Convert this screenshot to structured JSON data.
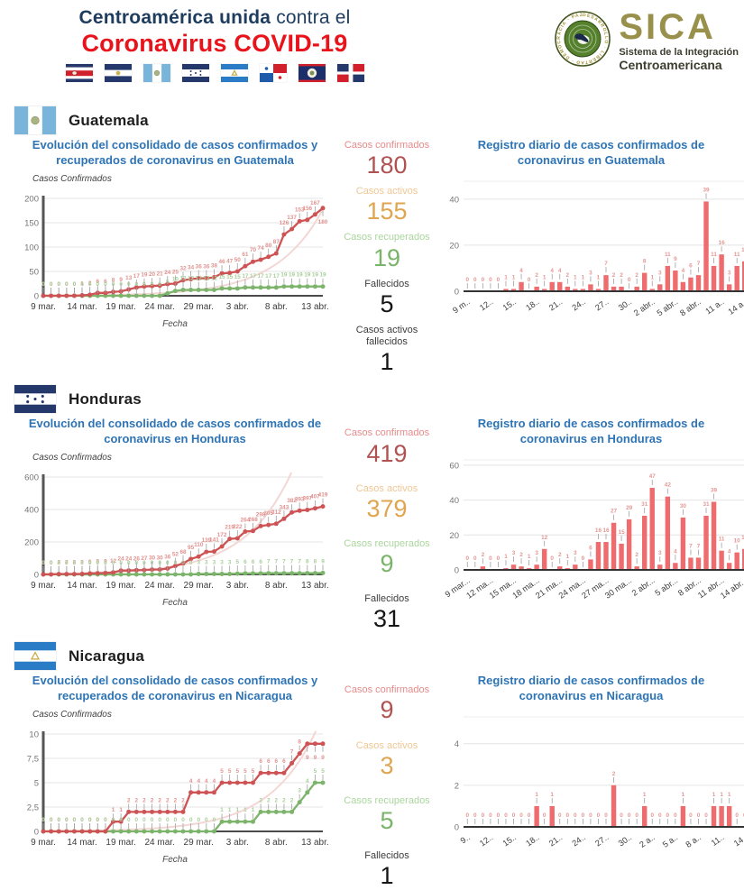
{
  "header": {
    "title_line1_bold": "Centroamérica unida",
    "title_line1_rest": " contra el",
    "title_line2": "Coronavirus COVID-19",
    "flags": [
      "costa-rica",
      "el-salvador",
      "guatemala",
      "honduras",
      "nicaragua",
      "panama",
      "belize",
      "dominican-republic"
    ],
    "sica": {
      "acronym": "SICA",
      "subtitle1": "Sistema de la Integración",
      "subtitle2": "Centroamericana",
      "emblem_words": "PAZ · DESARROLLO · LIBERTAD · DEMOCRACIA · SICA"
    }
  },
  "colors": {
    "title_navy": "#1d3c5e",
    "title_red": "#e8131b",
    "chart_title_blue": "#2e74b5",
    "sica_gold": "#99914b",
    "line_red": "#cd5355",
    "line_red_label": "#e09390",
    "line_green": "#7cb46b",
    "line_green_label": "#a8cf9b",
    "bar_red": "#ee6b6e",
    "bar_label": "#e39895",
    "trend_pink": "#f3d7d5",
    "tones": {
      "red": {
        "label": "#e58b8b",
        "value": "#b15252"
      },
      "orange": {
        "label": "#efc795",
        "value": "#dfa550"
      },
      "green": {
        "label": "#abd59e",
        "value": "#7ab469"
      },
      "dark": {
        "label": "#3c3c3c",
        "value": "#151515"
      }
    }
  },
  "countries": [
    {
      "name": "Guatemala",
      "flag": "guatemala",
      "stats": [
        {
          "label": "Casos confirmados",
          "value": "180",
          "tone": "red"
        },
        {
          "label": "Casos activos",
          "value": "155",
          "tone": "orange"
        },
        {
          "label": "Casos recuperados",
          "value": "19",
          "tone": "green"
        },
        {
          "label": "Fallecidos",
          "value": "5",
          "tone": "dark"
        },
        {
          "label": "Casos activos fallecidos",
          "value": "1",
          "tone": "dark"
        }
      ]
    },
    {
      "name": "Honduras",
      "flag": "honduras",
      "stats": [
        {
          "label": "Casos confirmados",
          "value": "419",
          "tone": "red"
        },
        {
          "label": "Casos activos",
          "value": "379",
          "tone": "orange"
        },
        {
          "label": "Casos recuperados",
          "value": "9",
          "tone": "green"
        },
        {
          "label": "Fallecidos",
          "value": "31",
          "tone": "dark"
        }
      ]
    },
    {
      "name": "Nicaragua",
      "flag": "nicaragua",
      "stats": [
        {
          "label": "Casos confirmados",
          "value": "9",
          "tone": "red"
        },
        {
          "label": "Casos activos",
          "value": "3",
          "tone": "orange"
        },
        {
          "label": "Casos recuperados",
          "value": "5",
          "tone": "green"
        },
        {
          "label": "Fallecidos",
          "value": "1",
          "tone": "dark"
        }
      ]
    }
  ],
  "chart_data": [
    {
      "country": "Guatemala",
      "type": "line",
      "title": "Evolución del consolidado de casos confirmados y recuperados de coronavirus en Guatemala",
      "ylabel": "Casos Confirmados",
      "xlabel": "Fecha",
      "ylim": [
        0,
        200
      ],
      "yticks": [
        0,
        50,
        100,
        150,
        200
      ],
      "ytick_labels": [
        "0",
        "50",
        "100",
        "150",
        "200"
      ],
      "grid": true,
      "legend": "none",
      "trend_exit": 1.02,
      "xticks": [
        {
          "i": 0,
          "label": "9 mar."
        },
        {
          "i": 5,
          "label": "14 mar."
        },
        {
          "i": 10,
          "label": "19 mar."
        },
        {
          "i": 15,
          "label": "24 mar."
        },
        {
          "i": 20,
          "label": "29 mar."
        },
        {
          "i": 25,
          "label": "3 abr."
        },
        {
          "i": 30,
          "label": "8 abr."
        },
        {
          "i": 35,
          "label": "13 abr."
        }
      ],
      "series": [
        {
          "name": "Casos confirmados",
          "values": [
            0,
            0,
            0,
            0,
            0,
            1,
            2,
            6,
            6,
            8,
            9,
            13,
            17,
            19,
            20,
            21,
            24,
            25,
            32,
            34,
            36,
            36,
            38,
            46,
            47,
            50,
            61,
            70,
            74,
            80,
            87,
            126,
            137,
            153,
            156,
            167,
            180
          ]
        },
        {
          "name": "Casos recuperados",
          "values": [
            0,
            0,
            0,
            0,
            0,
            0,
            0,
            0,
            0,
            0,
            0,
            0,
            0,
            0,
            0,
            0,
            5,
            10,
            12,
            12,
            12,
            12,
            12,
            15,
            15,
            15,
            17,
            17,
            17,
            17,
            17,
            19,
            19,
            19,
            19,
            19,
            19
          ]
        }
      ]
    },
    {
      "country": "Guatemala",
      "type": "bar",
      "title": "Registro diario de casos confirmados de coronavirus en Guatemala",
      "ylim": [
        0,
        47
      ],
      "yticks": [
        0,
        20,
        40
      ],
      "ytick_labels": [
        "0",
        "20",
        "40"
      ],
      "grid": true,
      "legend": "none",
      "xticks": [
        {
          "i": 0,
          "label": "9 m.."
        },
        {
          "i": 3,
          "label": "12.."
        },
        {
          "i": 6,
          "label": "15.."
        },
        {
          "i": 9,
          "label": "18.."
        },
        {
          "i": 12,
          "label": "21.."
        },
        {
          "i": 15,
          "label": "24.."
        },
        {
          "i": 18,
          "label": "27.."
        },
        {
          "i": 21,
          "label": "30.."
        },
        {
          "i": 24,
          "label": "2 abr.."
        },
        {
          "i": 27,
          "label": "5 abr.."
        },
        {
          "i": 30,
          "label": "8 abr.."
        },
        {
          "i": 33,
          "label": "11 a.."
        },
        {
          "i": 36,
          "label": "14 a.."
        }
      ],
      "values": [
        0,
        0,
        0,
        0,
        0,
        1,
        1,
        4,
        0,
        2,
        1,
        4,
        4,
        2,
        1,
        1,
        3,
        1,
        7,
        2,
        2,
        0,
        2,
        8,
        1,
        3,
        11,
        9,
        4,
        6,
        7,
        39,
        11,
        16,
        3,
        11,
        13
      ]
    },
    {
      "country": "Honduras",
      "type": "line",
      "title": "Evolución del consolidado de casos confirmados de coronavirus en Honduras",
      "ylabel": "Casos Confirmados",
      "xlabel": "Fecha",
      "ylim": [
        0,
        600
      ],
      "yticks": [
        0,
        200,
        400,
        600
      ],
      "ytick_labels": [
        "0",
        "200",
        "400",
        "600"
      ],
      "grid": true,
      "legend": "none",
      "trend_exit": 0.88,
      "xticks": [
        {
          "i": 0,
          "label": "9 mar."
        },
        {
          "i": 5,
          "label": "14 mar."
        },
        {
          "i": 10,
          "label": "19 mar."
        },
        {
          "i": 15,
          "label": "24 mar."
        },
        {
          "i": 20,
          "label": "29 mar."
        },
        {
          "i": 25,
          "label": "3 abr."
        },
        {
          "i": 30,
          "label": "8 abr."
        },
        {
          "i": 35,
          "label": "13 abr."
        }
      ],
      "series": [
        {
          "name": "Casos confirmados",
          "values": [
            0,
            0,
            2,
            2,
            2,
            3,
            6,
            8,
            9,
            12,
            24,
            24,
            26,
            27,
            30,
            30,
            36,
            52,
            68,
            95,
            110,
            139,
            141,
            172,
            219,
            222,
            264,
            268,
            298,
            305,
            312,
            343,
            382,
            393,
            397,
            407,
            419
          ]
        },
        {
          "name": "Casos recuperados",
          "values": [
            0,
            0,
            0,
            0,
            0,
            0,
            0,
            0,
            0,
            0,
            0,
            0,
            0,
            0,
            0,
            0,
            0,
            0,
            0,
            0,
            3,
            3,
            3,
            3,
            3,
            5,
            6,
            6,
            6,
            7,
            7,
            7,
            7,
            7,
            8,
            8,
            9
          ]
        }
      ]
    },
    {
      "country": "Honduras",
      "type": "bar",
      "title": "Registro diario de casos confirmados de coronavirus en Honduras",
      "ylim": [
        0,
        62
      ],
      "yticks": [
        0,
        20,
        40,
        60
      ],
      "ytick_labels": [
        "0",
        "20",
        "40",
        "60"
      ],
      "grid": true,
      "legend": "none",
      "xticks": [
        {
          "i": 0,
          "label": "9 mar..."
        },
        {
          "i": 3,
          "label": "12 ma..."
        },
        {
          "i": 6,
          "label": "15 ma..."
        },
        {
          "i": 9,
          "label": "18 ma..."
        },
        {
          "i": 12,
          "label": "21 ma..."
        },
        {
          "i": 15,
          "label": "24 ma..."
        },
        {
          "i": 18,
          "label": "27 ma..."
        },
        {
          "i": 21,
          "label": "30 ma..."
        },
        {
          "i": 24,
          "label": "2 abr..."
        },
        {
          "i": 27,
          "label": "5 abr..."
        },
        {
          "i": 30,
          "label": "8 abr..."
        },
        {
          "i": 33,
          "label": "11 abr..."
        },
        {
          "i": 36,
          "label": "14 abr..."
        }
      ],
      "values": [
        0,
        0,
        2,
        0,
        0,
        1,
        3,
        2,
        1,
        3,
        12,
        0,
        2,
        1,
        3,
        0,
        6,
        16,
        16,
        27,
        15,
        29,
        2,
        31,
        47,
        3,
        42,
        4,
        30,
        7,
        7,
        31,
        39,
        11,
        4,
        10,
        12
      ]
    },
    {
      "country": "Nicaragua",
      "type": "line",
      "title": "Evolución del consolidado de casos confirmados y recuperados de coronavirus en Nicaragua",
      "ylabel": "Casos Confirmados",
      "xlabel": "Fecha",
      "ylim": [
        0,
        10
      ],
      "yticks": [
        0,
        2.5,
        5,
        7.5,
        10
      ],
      "ytick_labels": [
        "0",
        "2,5",
        "5",
        "7,5",
        "10"
      ],
      "grid": true,
      "legend": "none",
      "trend_exit": 0.97,
      "xticks": [
        {
          "i": 0,
          "label": "9 mar."
        },
        {
          "i": 5,
          "label": "14 mar."
        },
        {
          "i": 10,
          "label": "19 mar."
        },
        {
          "i": 15,
          "label": "24 mar."
        },
        {
          "i": 20,
          "label": "29 mar."
        },
        {
          "i": 25,
          "label": "3 abr."
        },
        {
          "i": 30,
          "label": "8 abr."
        },
        {
          "i": 35,
          "label": "13 abr."
        }
      ],
      "series": [
        {
          "name": "Casos confirmados",
          "values": [
            0,
            0,
            0,
            0,
            0,
            0,
            0,
            0,
            0,
            1,
            1,
            2,
            2,
            2,
            2,
            2,
            2,
            2,
            2,
            4,
            4,
            4,
            4,
            5,
            5,
            5,
            5,
            5,
            6,
            6,
            6,
            6,
            7,
            8,
            9,
            9,
            9
          ]
        },
        {
          "name": "Casos recuperados",
          "values": [
            0,
            0,
            0,
            0,
            0,
            0,
            0,
            0,
            0,
            0,
            0,
            0,
            0,
            0,
            0,
            0,
            0,
            0,
            0,
            0,
            0,
            0,
            0,
            1,
            1,
            1,
            1,
            1,
            2,
            2,
            2,
            2,
            2,
            3,
            4,
            5,
            5
          ]
        }
      ]
    },
    {
      "country": "Nicaragua",
      "type": "bar",
      "title": "Registro diario de casos confirmados de coronavirus en Nicaragua",
      "ylim": [
        0,
        5.2
      ],
      "yticks": [
        0,
        2,
        4
      ],
      "ytick_labels": [
        "0",
        "2",
        "4"
      ],
      "grid": true,
      "legend": "none",
      "xticks": [
        {
          "i": 0,
          "label": "9.."
        },
        {
          "i": 3,
          "label": "12.."
        },
        {
          "i": 6,
          "label": "15.."
        },
        {
          "i": 9,
          "label": "18.."
        },
        {
          "i": 12,
          "label": "21.."
        },
        {
          "i": 15,
          "label": "24.."
        },
        {
          "i": 18,
          "label": "27.."
        },
        {
          "i": 21,
          "label": "30.."
        },
        {
          "i": 24,
          "label": "2 a.."
        },
        {
          "i": 27,
          "label": "5 a.."
        },
        {
          "i": 30,
          "label": "8 a.."
        },
        {
          "i": 33,
          "label": "11.."
        },
        {
          "i": 36,
          "label": "14.."
        }
      ],
      "values": [
        0,
        0,
        0,
        0,
        0,
        0,
        0,
        0,
        0,
        1,
        0,
        1,
        0,
        0,
        0,
        0,
        0,
        0,
        0,
        2,
        0,
        0,
        0,
        1,
        0,
        0,
        0,
        0,
        1,
        0,
        0,
        0,
        1,
        1,
        1,
        0,
        0
      ]
    }
  ]
}
